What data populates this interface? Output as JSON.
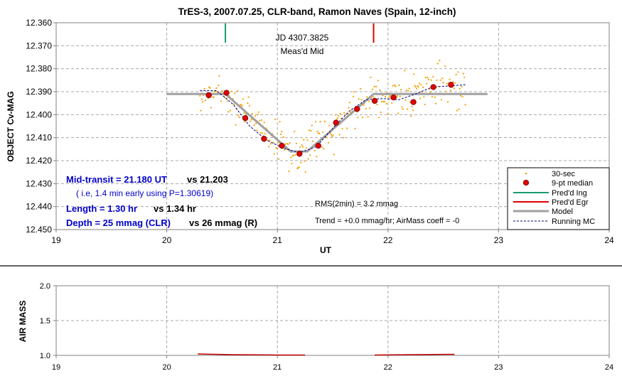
{
  "chart_data": [
    {
      "type": "scatter",
      "title": "TrES-3, 2007.07.25, CLR-band, Ramon Naves (Spain, 12-inch)",
      "xlabel": "UT",
      "ylabel": "OBJECT Cv-MAG",
      "xlim": [
        19,
        24
      ],
      "ylim": [
        12.36,
        12.45
      ],
      "y_inverted": true,
      "grid": true,
      "x_ticks": [
        "19",
        "20",
        "21",
        "22",
        "23",
        "24"
      ],
      "y_ticks": [
        "12.360",
        "12.370",
        "12.380",
        "12.390",
        "12.400",
        "12.410",
        "12.420",
        "12.430",
        "12.440",
        "12.450"
      ],
      "ingress_marker_x": 20.53,
      "egress_marker_x": 21.87,
      "markers_label": [
        "JD 4307.3825",
        "Meas'd Mid"
      ],
      "annotations": {
        "mid_transit": "Mid-transit = 21.180 UT",
        "mid_transit_ref": "vs 21.203",
        "early_note": "( i.e, 1.4 min early using P=1.30619)",
        "length": "Length = 1.30 hr",
        "length_ref": "vs 1.34 hr",
        "depth": "Depth = 25 mmag (CLR)",
        "depth_ref": "vs 26 mmag (R)",
        "rms": "RMS(2min) = 3.2 mmag",
        "trend": "Trend = +0.0 mmag/hr; AirMass coeff = -0"
      },
      "legend": {
        "placement": "bottom-right",
        "entries": [
          "30-sec",
          "9-pt median",
          "Pred'd Ing",
          "Pred'd Egr",
          "Model",
          "Running MC"
        ]
      },
      "colors": {
        "points": "#f0a000",
        "median": "#e00000",
        "ingress": "#1a9a70",
        "egress": "#e00000",
        "model": "#a0a0a0",
        "running": "#000080",
        "annot_blue": "#0000cc"
      },
      "series": [
        {
          "name": "9-pt median",
          "x": [
            20.38,
            20.54,
            20.71,
            20.88,
            21.04,
            21.2,
            21.37,
            21.53,
            21.72,
            21.88,
            22.05,
            22.23,
            22.41,
            22.57
          ],
          "y": [
            12.3915,
            12.3905,
            12.4015,
            12.4105,
            12.4135,
            12.417,
            12.4135,
            12.4035,
            12.3975,
            12.394,
            12.3925,
            12.3945,
            12.388,
            12.387
          ]
        },
        {
          "name": "Model",
          "x": [
            20.0,
            20.53,
            21.12,
            21.27,
            21.87,
            22.9
          ],
          "y": [
            12.391,
            12.391,
            12.416,
            12.416,
            12.391,
            12.391
          ]
        },
        {
          "name": "Running MC",
          "x": [
            20.3,
            20.45,
            20.6,
            20.75,
            20.9,
            21.05,
            21.2,
            21.35,
            21.5,
            21.65,
            21.8,
            21.95,
            22.1,
            22.25,
            22.4,
            22.55,
            22.7
          ],
          "y": [
            12.3895,
            12.3895,
            12.3955,
            12.405,
            12.411,
            12.4145,
            12.4165,
            12.414,
            12.406,
            12.3985,
            12.3935,
            12.393,
            12.3935,
            12.391,
            12.388,
            12.3875,
            12.387
          ]
        }
      ]
    },
    {
      "type": "line",
      "ylabel": "AIR MASS",
      "xlim": [
        19,
        24
      ],
      "ylim": [
        1.0,
        2.0
      ],
      "grid": true,
      "x_ticks": [
        "19",
        "20",
        "21",
        "22",
        "23",
        "24"
      ],
      "y_ticks": [
        "1.0",
        "1.5",
        "2.0"
      ],
      "series": [
        {
          "x": [
            20.28,
            20.6,
            21.0,
            21.25,
            21.88,
            22.2,
            22.6
          ],
          "y": [
            1.02,
            1.01,
            1.005,
            1.005,
            1.005,
            1.01,
            1.015
          ]
        }
      ]
    }
  ]
}
